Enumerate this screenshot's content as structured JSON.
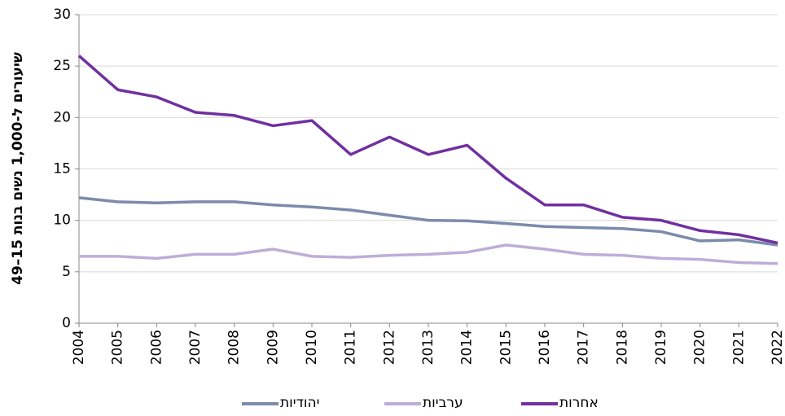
{
  "chart_data": {
    "type": "line",
    "y_label": "שיעורים ל-1,000 נשים בנות 15–49",
    "categories": [
      "2004",
      "2005",
      "2006",
      "2007",
      "2008",
      "2009",
      "2010",
      "2011",
      "2012",
      "2013",
      "2014",
      "2015",
      "2016",
      "2017",
      "2018",
      "2019",
      "2020",
      "2021",
      "2022"
    ],
    "series": [
      {
        "name": "יהודיות",
        "color": "#7b8bab",
        "values": [
          12.2,
          11.8,
          11.7,
          11.8,
          11.8,
          11.5,
          11.3,
          11.0,
          10.5,
          10.0,
          9.95,
          9.7,
          9.4,
          9.3,
          9.2,
          8.9,
          8.0,
          8.1,
          7.6
        ]
      },
      {
        "name": "ערביות",
        "color": "#bcaed8",
        "values": [
          6.5,
          6.5,
          6.3,
          6.7,
          6.7,
          7.2,
          6.5,
          6.4,
          6.6,
          6.7,
          6.9,
          7.6,
          7.2,
          6.7,
          6.6,
          6.3,
          6.2,
          5.9,
          5.8
        ]
      },
      {
        "name": "אחרות",
        "color": "#7030a0",
        "values": [
          26.0,
          22.7,
          22.0,
          20.5,
          20.2,
          19.2,
          19.7,
          16.4,
          18.1,
          16.4,
          17.3,
          14.1,
          11.5,
          11.5,
          10.3,
          10.0,
          9.0,
          8.6,
          7.8
        ]
      }
    ],
    "ylim": [
      0,
      30
    ],
    "yticks": [
      0,
      5,
      10,
      15,
      20,
      25,
      30
    ],
    "grid": true,
    "legend": "bottom"
  }
}
